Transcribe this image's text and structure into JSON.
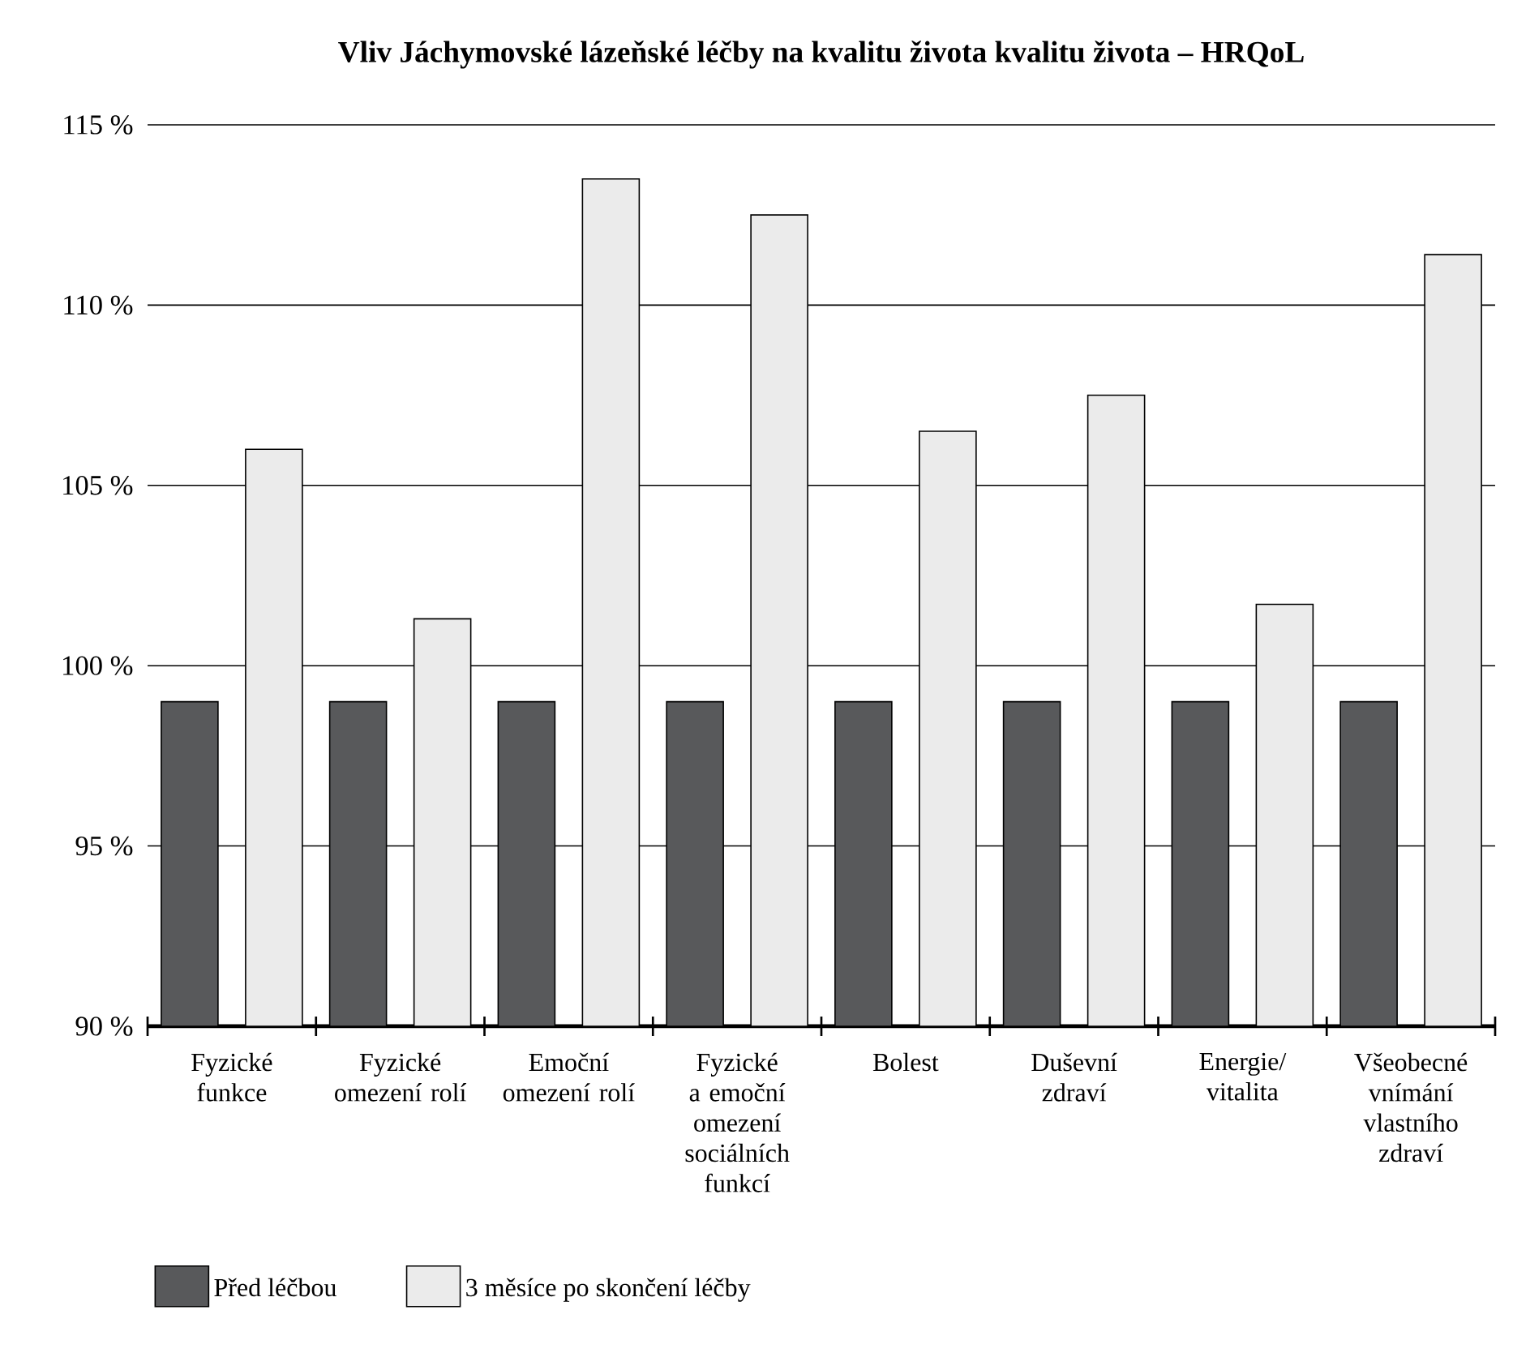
{
  "chart_data": {
    "type": "bar",
    "title": "Vliv Jáchymovské lázeňské léčby na kvalitu života kvalitu života – HRQoL",
    "categories": [
      "Fyzické funkce",
      "Fyzické omezení rolí",
      "Emoční omezení rolí",
      "Fyzické a emoční omezení sociálních funkcí",
      "Bolest",
      "Duševní zdraví",
      "Energie/ vitalita",
      "Všeobecné vnímání vlastního zdraví"
    ],
    "series": [
      {
        "name": "Před léčbou",
        "color": "#58595b",
        "values": [
          99,
          99,
          99,
          99,
          99,
          99,
          99,
          99
        ]
      },
      {
        "name": "3 měsíce po skončení léčby",
        "color": "#ebebeb",
        "values": [
          106,
          101.3,
          113.5,
          112.5,
          106.5,
          107.5,
          101.7,
          111.4
        ]
      }
    ],
    "ylim": [
      90,
      115
    ],
    "yticks": [
      {
        "value": 90,
        "label": "90 %"
      },
      {
        "value": 95,
        "label": "95 %"
      },
      {
        "value": 100,
        "label": "100 %"
      },
      {
        "value": 105,
        "label": "105 %"
      },
      {
        "value": 110,
        "label": "110 %"
      },
      {
        "value": 115,
        "label": "115 %"
      }
    ],
    "grid": "y",
    "legend": "bottom"
  }
}
